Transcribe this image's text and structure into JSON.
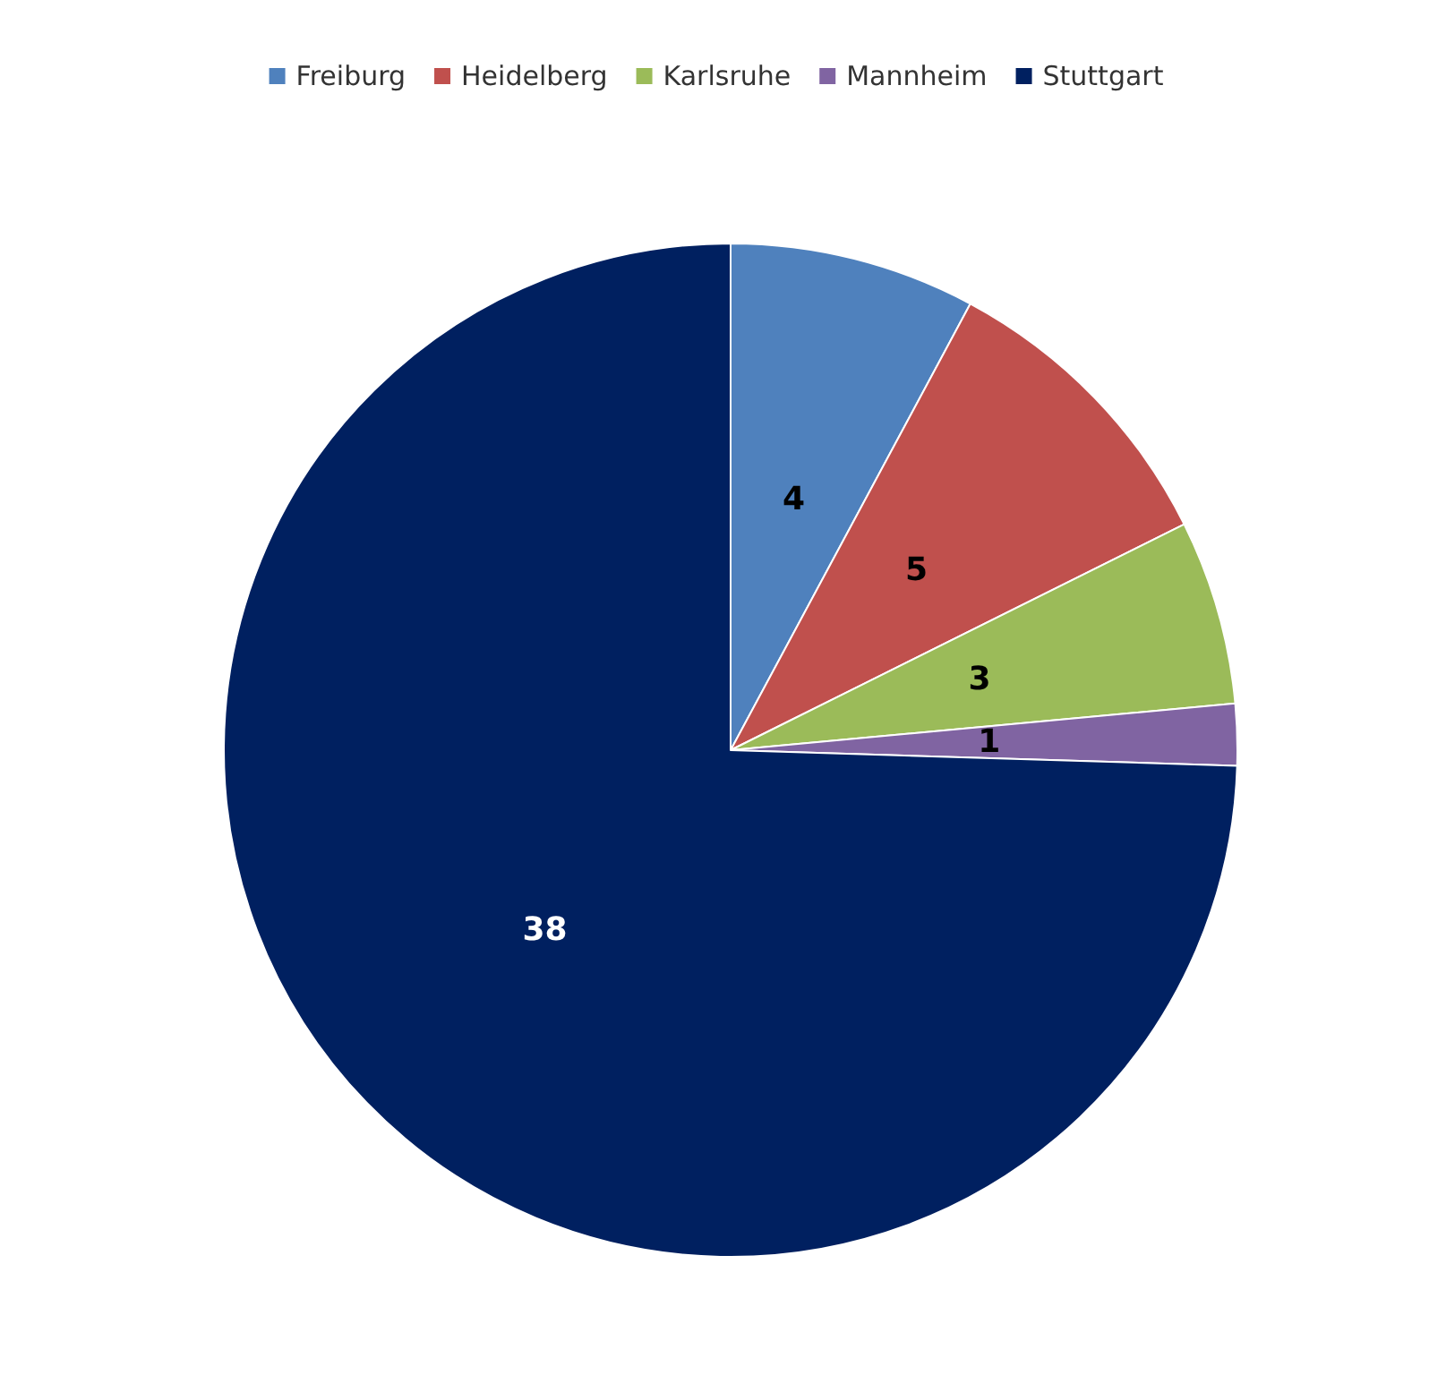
{
  "chart_data": {
    "type": "pie",
    "categories": [
      "Freiburg",
      "Heidelberg",
      "Karlsruhe",
      "Mannheim",
      "Stuttgart"
    ],
    "values": [
      4,
      5,
      3,
      1,
      38
    ],
    "colors": [
      "#4f81bd",
      "#c0504d",
      "#9bbb59",
      "#8064a2",
      "#002060"
    ],
    "data_labels": true,
    "legend": "top"
  }
}
